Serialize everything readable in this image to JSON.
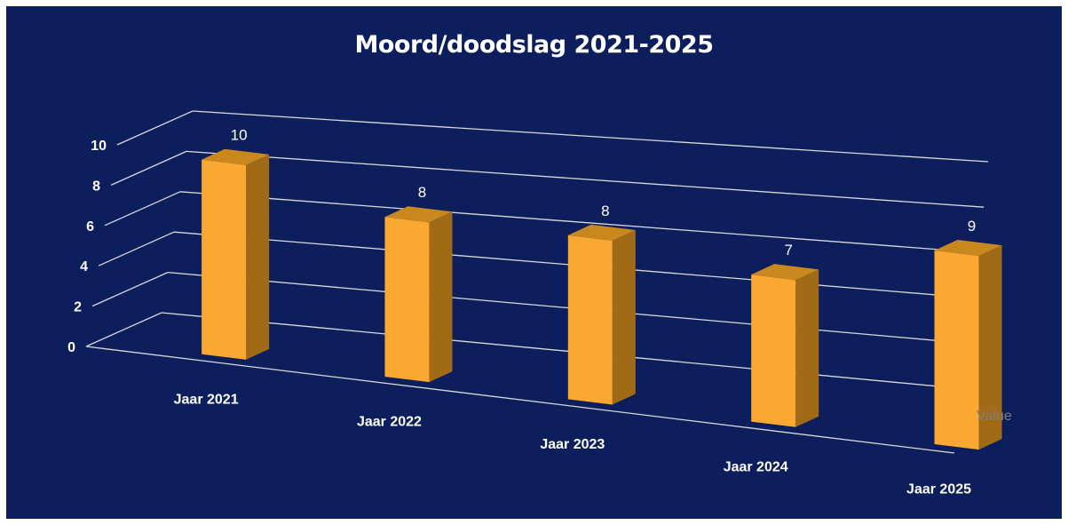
{
  "chart_data": {
    "type": "bar",
    "title": "Moord/doodslag 2021-2025",
    "categories": [
      "Jaar 2021",
      "Jaar 2022",
      "Jaar 2023",
      "Jaar 2024",
      "Jaar 2025"
    ],
    "series": [
      {
        "name": "Value",
        "values": [
          10,
          8,
          8,
          7,
          9
        ]
      }
    ],
    "ylim": [
      0,
      10
    ],
    "yticks": [
      0,
      2,
      4,
      6,
      8,
      10
    ],
    "grid": true,
    "three_d": true,
    "data_labels": true,
    "bar_color": "#faa832",
    "background_color": "#0c1f5c"
  }
}
